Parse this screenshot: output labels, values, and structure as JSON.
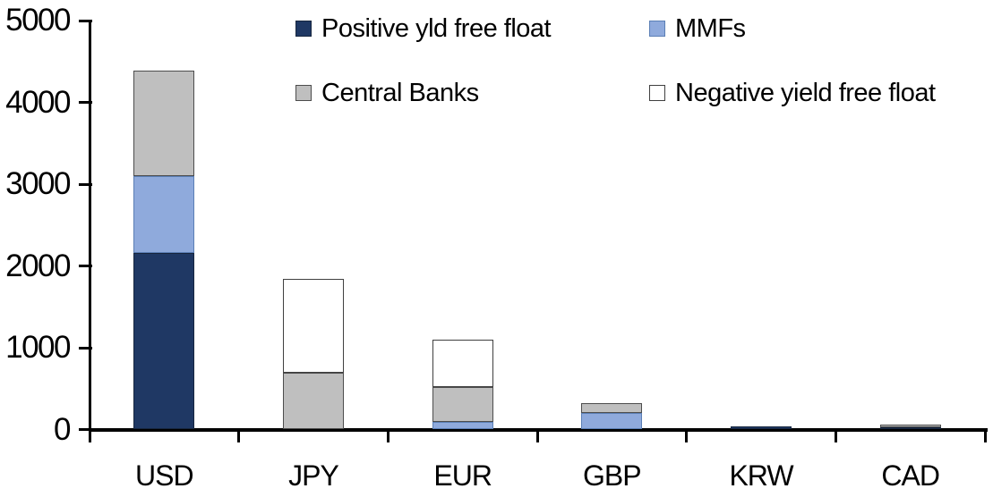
{
  "chart_data": {
    "type": "bar",
    "subtype": "stacked-vertical",
    "title": "",
    "xlabel": "",
    "ylabel": "",
    "categories": [
      "USD",
      "JPY",
      "EUR",
      "GBP",
      "KRW",
      "CAD"
    ],
    "series": [
      {
        "name": "Positive yld free float",
        "color": "#1F3864",
        "border_color": "#17263F",
        "values": [
          2160,
          0,
          0,
          0,
          40,
          30
        ]
      },
      {
        "name": "MMFs",
        "color": "#8FAADC",
        "border_color": "#5B7FB5",
        "values": [
          940,
          0,
          90,
          200,
          0,
          0
        ]
      },
      {
        "name": "Central Banks",
        "color": "#BFBFBF",
        "border_color": "#4D4D4D",
        "values": [
          1290,
          690,
          430,
          120,
          0,
          30
        ]
      },
      {
        "name": "Negative yield free float",
        "color": "#FFFFFF",
        "border_color": "#404040",
        "values": [
          0,
          1150,
          580,
          0,
          0,
          0
        ]
      }
    ],
    "totals": {
      "USD": 4390,
      "JPY": 1840,
      "EUR": 1100,
      "GBP": 320,
      "KRW": 40,
      "CAD": 60
    },
    "ylim": [
      0,
      5000
    ],
    "yticks": [
      0,
      1000,
      2000,
      3000,
      4000,
      5000
    ],
    "grid": false,
    "legend_position": "top, two columns, two rows",
    "legend_order": [
      "Positive yld free float",
      "MMFs",
      "Central Banks",
      "Negative yield free float"
    ],
    "axis_color": "#000000",
    "background_color": "#FFFFFF"
  }
}
